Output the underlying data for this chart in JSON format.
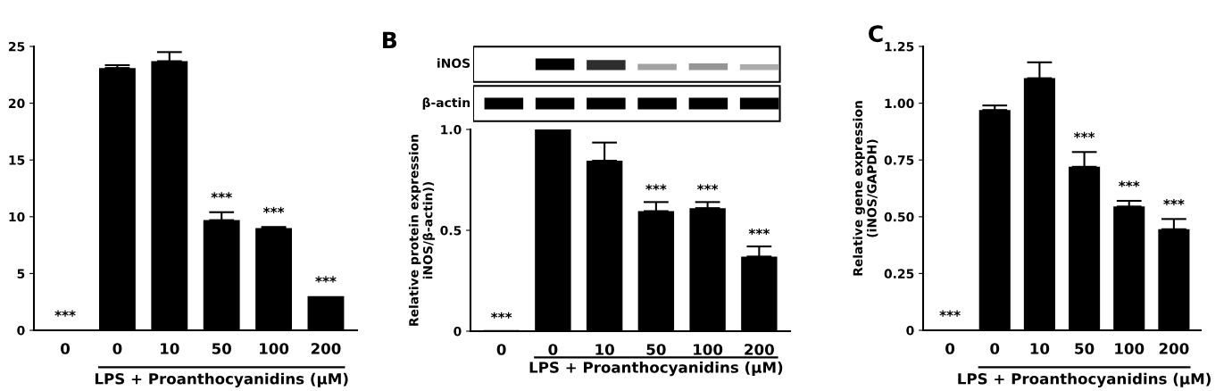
{
  "chart_data": [
    {
      "type": "bar",
      "categories": [
        "0",
        "0",
        "10",
        "50",
        "100",
        "200"
      ],
      "xlabel": "LPS + Proanthocyanidins (μM)",
      "values": [
        0,
        23.1,
        23.7,
        9.7,
        9.0,
        3.0
      ],
      "color": "#000000",
      "errors": [
        null,
        [
          23.1,
          23.35
        ],
        [
          23.7,
          24.5
        ],
        [
          9.7,
          10.4
        ],
        [
          9.0,
          9.1
        ],
        null
      ],
      "value_labels": [
        "***",
        null,
        null,
        "***",
        "***",
        "***"
      ],
      "ylim": [
        0,
        25
      ],
      "yticks": [
        0,
        5,
        10,
        15,
        20,
        25
      ],
      "grid": false
    },
    {
      "type": "bar",
      "title": "B",
      "categories": [
        "0",
        "0",
        "10",
        "50",
        "100",
        "200"
      ],
      "xlabel": "LPS + Proanthocyanidins (μM)",
      "ylabel": "Relative protein expression\niNOS/β-actin))",
      "values": [
        0.005,
        1.0,
        0.845,
        0.595,
        0.61,
        0.37
      ],
      "color": "#000000",
      "errors": [
        null,
        null,
        [
          0.845,
          0.935
        ],
        [
          0.595,
          0.64
        ],
        [
          0.61,
          0.64
        ],
        [
          0.37,
          0.42
        ]
      ],
      "value_labels": [
        "***",
        null,
        null,
        "***",
        "***",
        "***"
      ],
      "annotations": [
        "iNOS",
        "β-actin"
      ],
      "ylim": [
        0,
        1.0
      ],
      "yticks": [
        0,
        {
          "value": 0.5,
          "label": "0.5"
        },
        {
          "value": 1.0,
          "label": "1.0"
        }
      ],
      "grid": false
    },
    {
      "type": "bar",
      "title": "C",
      "categories": [
        "0",
        "0",
        "10",
        "50",
        "100",
        "200"
      ],
      "xlabel": "LPS + Proanthocyanidins (μM)",
      "ylabel": "Relative gene expression\n(iNOS/GAPDH)",
      "values": [
        0,
        0.97,
        1.11,
        0.72,
        0.545,
        0.445
      ],
      "color": "#000000",
      "errors": [
        null,
        [
          0.97,
          0.99
        ],
        [
          1.11,
          1.18
        ],
        [
          0.72,
          0.785
        ],
        [
          0.545,
          0.57
        ],
        [
          0.445,
          0.49
        ]
      ],
      "value_labels": [
        "***",
        null,
        null,
        "***",
        "***",
        "***"
      ],
      "ylim": [
        0,
        1.25
      ],
      "yticks": [
        0,
        {
          "value": 0.25,
          "label": "0.25"
        },
        {
          "value": 0.5,
          "label": "0.50"
        },
        {
          "value": 0.75,
          "label": "0.75"
        },
        {
          "value": 1.0,
          "label": "1.00"
        },
        {
          "value": 1.25,
          "label": "1.25"
        }
      ],
      "grid": false
    }
  ]
}
